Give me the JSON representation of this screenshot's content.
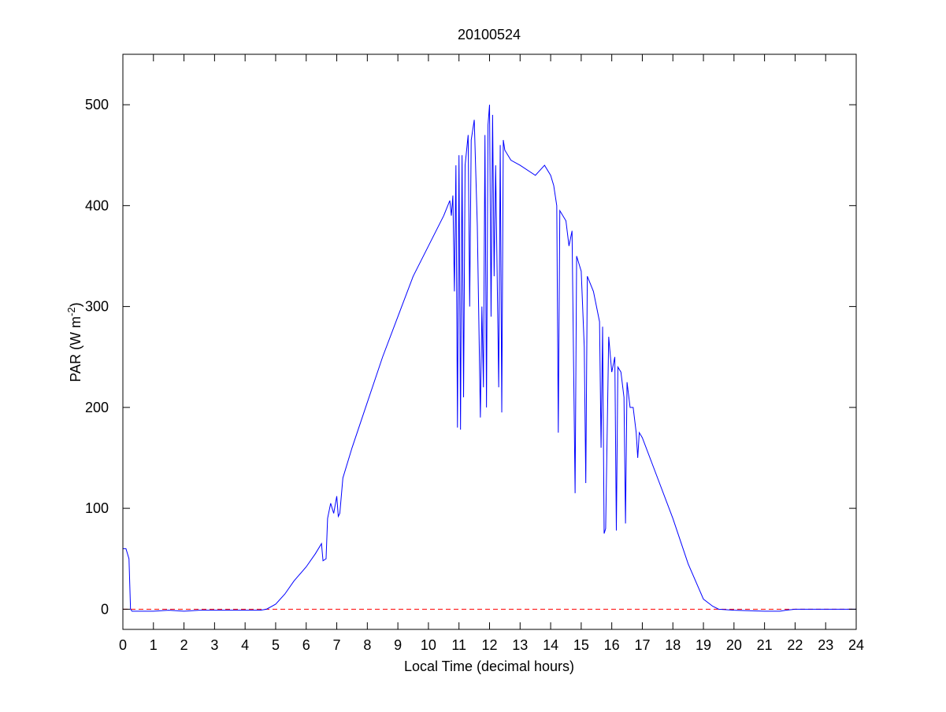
{
  "chart_data": {
    "type": "line",
    "title": "20100524",
    "xlabel": "Local Time (decimal hours)",
    "ylabel": {
      "text": "PAR (W m",
      "superscript": "-2",
      "suffix": ")"
    },
    "x": [
      0,
      0.1,
      0.2,
      0.25,
      0.3,
      0.5,
      1,
      1.5,
      2,
      2.5,
      3,
      4,
      4.5,
      4.7,
      5,
      5.3,
      5.6,
      6,
      6.3,
      6.5,
      6.55,
      6.65,
      6.7,
      6.8,
      6.9,
      7.0,
      7.05,
      7.1,
      7.2,
      7.5,
      8,
      8.5,
      9,
      9.5,
      10,
      10.5,
      10.7,
      10.75,
      10.8,
      10.85,
      10.9,
      10.95,
      11.0,
      11.05,
      11.1,
      11.15,
      11.2,
      11.3,
      11.35,
      11.4,
      11.5,
      11.6,
      11.7,
      11.75,
      11.8,
      11.85,
      11.9,
      11.95,
      12.0,
      12.05,
      12.1,
      12.15,
      12.2,
      12.3,
      12.35,
      12.4,
      12.45,
      12.5,
      12.7,
      13,
      13.5,
      13.8,
      14,
      14.1,
      14.2,
      14.25,
      14.3,
      14.5,
      14.6,
      14.7,
      14.8,
      14.85,
      15,
      15.1,
      15.15,
      15.2,
      15.4,
      15.5,
      15.6,
      15.65,
      15.7,
      15.75,
      15.8,
      15.9,
      16.0,
      16.1,
      16.15,
      16.2,
      16.3,
      16.4,
      16.45,
      16.5,
      16.6,
      16.7,
      16.8,
      16.85,
      16.9,
      17,
      17.5,
      18,
      18.5,
      19,
      19.3,
      19.5,
      20,
      21,
      21.5,
      21.7,
      22,
      24
    ],
    "series": [
      {
        "name": "PAR",
        "color": "#0000ff",
        "values": [
          60,
          60,
          50,
          0,
          -2,
          -2,
          -2,
          -1,
          -2,
          -1,
          -1,
          -1,
          -1,
          0,
          5,
          15,
          28,
          42,
          55,
          65,
          48,
          50,
          90,
          105,
          95,
          112,
          92,
          95,
          130,
          160,
          205,
          250,
          290,
          330,
          360,
          390,
          405,
          390,
          410,
          315,
          440,
          180,
          450,
          178,
          450,
          210,
          440,
          470,
          300,
          465,
          485,
          380,
          190,
          300,
          220,
          470,
          200,
          480,
          500,
          290,
          490,
          330,
          440,
          220,
          460,
          195,
          465,
          455,
          445,
          440,
          430,
          440,
          430,
          420,
          400,
          175,
          395,
          385,
          360,
          375,
          115,
          350,
          335,
          260,
          125,
          330,
          315,
          300,
          285,
          160,
          280,
          75,
          80,
          270,
          235,
          250,
          78,
          240,
          235,
          210,
          85,
          225,
          200,
          200,
          175,
          150,
          175,
          170,
          130,
          90,
          45,
          10,
          3,
          0,
          -1,
          -2,
          -2,
          -1,
          0,
          0
        ]
      }
    ],
    "reference_line": {
      "value": 0,
      "color": "#ff0000",
      "style": "dashed"
    },
    "xlim": [
      0,
      24
    ],
    "xticks": [
      0,
      1,
      2,
      3,
      4,
      5,
      6,
      7,
      8,
      9,
      10,
      11,
      12,
      13,
      14,
      15,
      16,
      17,
      18,
      19,
      20,
      21,
      22,
      23,
      24
    ],
    "ylim": [
      -20,
      550
    ],
    "yticks": [
      0,
      100,
      200,
      300,
      400,
      500
    ]
  }
}
